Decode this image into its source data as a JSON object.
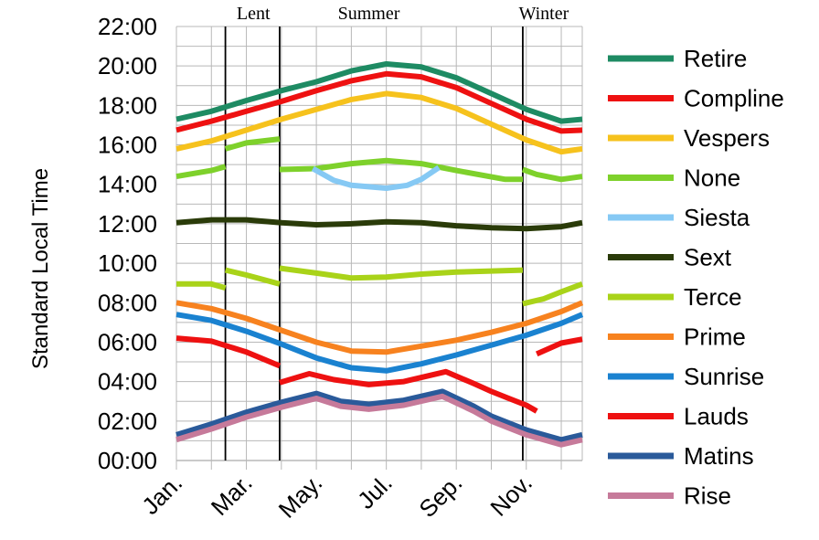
{
  "chart_data": {
    "type": "line",
    "ylabel": "Standard Local Time",
    "ylim": [
      0,
      22
    ],
    "xlim": [
      1,
      12.6
    ],
    "y_ticks": [
      "00:00",
      "02:00",
      "04:00",
      "06:00",
      "08:00",
      "10:00",
      "12:00",
      "14:00",
      "16:00",
      "18:00",
      "20:00",
      "22:00"
    ],
    "x_ticks": [
      {
        "label": "Jan.",
        "month": 1
      },
      {
        "label": "Mar.",
        "month": 3
      },
      {
        "label": "May.",
        "month": 5
      },
      {
        "label": "Jul.",
        "month": 7
      },
      {
        "label": "Sep.",
        "month": 9
      },
      {
        "label": "Nov.",
        "month": 11
      }
    ],
    "grid": true,
    "legend_position": "right",
    "season_markers": [
      {
        "label": "Lent",
        "month": 2.4
      },
      {
        "label": "",
        "month": 3.95
      },
      {
        "label": "Summer",
        "month": null
      },
      {
        "label": "Winter",
        "month": 10.9
      }
    ],
    "season_label_months": {
      "Lent": 3.2,
      "Summer": 6.5,
      "Winter": 11.5
    },
    "series": [
      {
        "name": "Retire",
        "color": "#1e8b63",
        "segments": [
          [
            [
              1,
              17.3
            ],
            [
              2,
              17.7
            ],
            [
              3,
              18.25
            ],
            [
              4,
              18.75
            ],
            [
              5,
              19.2
            ],
            [
              6,
              19.75
            ],
            [
              7,
              20.1
            ],
            [
              8,
              19.95
            ],
            [
              9,
              19.4
            ],
            [
              10,
              18.6
            ],
            [
              11,
              17.8
            ],
            [
              12,
              17.2
            ],
            [
              12.6,
              17.3
            ]
          ]
        ]
      },
      {
        "name": "Compline",
        "color": "#ee1111",
        "segments": [
          [
            [
              1,
              16.75
            ],
            [
              2,
              17.2
            ],
            [
              3,
              17.7
            ],
            [
              4,
              18.2
            ],
            [
              5,
              18.75
            ],
            [
              6,
              19.25
            ],
            [
              7,
              19.6
            ],
            [
              8,
              19.45
            ],
            [
              9,
              18.9
            ],
            [
              10,
              18.1
            ],
            [
              11,
              17.3
            ],
            [
              12,
              16.7
            ],
            [
              12.6,
              16.75
            ]
          ]
        ]
      },
      {
        "name": "Vespers",
        "color": "#f6c21d",
        "segments": [
          [
            [
              1,
              15.8
            ],
            [
              2,
              16.2
            ],
            [
              3,
              16.75
            ],
            [
              4,
              17.3
            ],
            [
              5,
              17.8
            ],
            [
              6,
              18.3
            ],
            [
              7,
              18.6
            ],
            [
              8,
              18.4
            ],
            [
              9,
              17.85
            ],
            [
              10,
              17.05
            ],
            [
              11,
              16.25
            ],
            [
              12,
              15.65
            ],
            [
              12.6,
              15.8
            ]
          ]
        ]
      },
      {
        "name": "None",
        "color": "#7ed12b",
        "segments": [
          [
            [
              1,
              14.4
            ],
            [
              2,
              14.7
            ],
            [
              2.4,
              14.9
            ]
          ],
          [
            [
              2.4,
              15.8
            ],
            [
              3,
              16.1
            ],
            [
              3.95,
              16.3
            ]
          ],
          [
            [
              3.95,
              14.75
            ],
            [
              5,
              14.8
            ],
            [
              6,
              15.05
            ],
            [
              7,
              15.2
            ],
            [
              8,
              15.05
            ],
            [
              9,
              14.7
            ],
            [
              10.4,
              14.25
            ],
            [
              10.9,
              14.25
            ]
          ],
          [
            [
              10.9,
              14.75
            ],
            [
              11.3,
              14.5
            ],
            [
              12,
              14.25
            ],
            [
              12.6,
              14.4
            ]
          ]
        ]
      },
      {
        "name": "Siesta",
        "color": "#86c9f4",
        "segments": [
          [
            [
              4.9,
              14.8
            ],
            [
              5.5,
              14.2
            ],
            [
              6,
              13.95
            ],
            [
              7,
              13.8
            ],
            [
              7.6,
              13.95
            ],
            [
              8,
              14.25
            ],
            [
              8.5,
              14.85
            ]
          ]
        ]
      },
      {
        "name": "Sext",
        "color": "#2a3b09",
        "segments": [
          [
            [
              1,
              12.05
            ],
            [
              2,
              12.2
            ],
            [
              3,
              12.2
            ],
            [
              4,
              12.05
            ],
            [
              5,
              11.95
            ],
            [
              6,
              12.0
            ],
            [
              7,
              12.1
            ],
            [
              8,
              12.05
            ],
            [
              9,
              11.9
            ],
            [
              10,
              11.8
            ],
            [
              11,
              11.75
            ],
            [
              12,
              11.85
            ],
            [
              12.6,
              12.05
            ]
          ]
        ]
      },
      {
        "name": "Terce",
        "color": "#a9d319",
        "segments": [
          [
            [
              1,
              8.95
            ],
            [
              2,
              8.95
            ],
            [
              2.4,
              8.75
            ]
          ],
          [
            [
              2.4,
              9.65
            ],
            [
              3,
              9.4
            ],
            [
              3.95,
              8.95
            ]
          ],
          [
            [
              3.95,
              9.75
            ],
            [
              5,
              9.5
            ],
            [
              6,
              9.25
            ],
            [
              7,
              9.3
            ],
            [
              8,
              9.45
            ],
            [
              9,
              9.55
            ],
            [
              10.9,
              9.65
            ]
          ],
          [
            [
              10.9,
              7.95
            ],
            [
              11.5,
              8.2
            ],
            [
              12,
              8.55
            ],
            [
              12.6,
              8.95
            ]
          ]
        ]
      },
      {
        "name": "Prime",
        "color": "#f7821f",
        "segments": [
          [
            [
              1,
              8.0
            ],
            [
              2,
              7.7
            ],
            [
              3,
              7.2
            ],
            [
              4,
              6.6
            ],
            [
              5,
              6.0
            ],
            [
              6,
              5.55
            ],
            [
              7,
              5.5
            ],
            [
              8,
              5.8
            ],
            [
              9,
              6.1
            ],
            [
              10,
              6.5
            ],
            [
              11,
              6.95
            ],
            [
              12,
              7.55
            ],
            [
              12.6,
              8.0
            ]
          ]
        ]
      },
      {
        "name": "Sunrise",
        "color": "#1a82d0",
        "segments": [
          [
            [
              1,
              7.4
            ],
            [
              2,
              7.1
            ],
            [
              3,
              6.55
            ],
            [
              4,
              5.9
            ],
            [
              5,
              5.2
            ],
            [
              6,
              4.7
            ],
            [
              7,
              4.55
            ],
            [
              8,
              4.9
            ],
            [
              9,
              5.35
            ],
            [
              10,
              5.85
            ],
            [
              11,
              6.35
            ],
            [
              12,
              6.95
            ],
            [
              12.6,
              7.4
            ]
          ]
        ]
      },
      {
        "name": "Lauds",
        "color": "#ee1111",
        "segments": [
          [
            [
              1,
              6.2
            ],
            [
              2,
              6.05
            ],
            [
              3,
              5.5
            ],
            [
              3.95,
              4.8
            ]
          ],
          [
            [
              3.95,
              3.95
            ],
            [
              4.8,
              4.4
            ],
            [
              5.5,
              4.1
            ],
            [
              6.5,
              3.85
            ],
            [
              7.5,
              4.0
            ],
            [
              8.7,
              4.5
            ],
            [
              9.5,
              3.9
            ],
            [
              10,
              3.5
            ],
            [
              10.5,
              3.15
            ],
            [
              11,
              2.8
            ],
            [
              11.3,
              2.5
            ]
          ],
          [
            [
              11.3,
              5.4
            ],
            [
              12,
              5.95
            ],
            [
              12.6,
              6.15
            ]
          ]
        ]
      },
      {
        "name": "Matins",
        "color": "#2a5a9a",
        "segments": [
          [
            [
              1,
              1.3
            ],
            [
              2,
              1.85
            ],
            [
              3,
              2.45
            ],
            [
              4,
              2.95
            ],
            [
              5,
              3.4
            ],
            [
              5.7,
              3.0
            ],
            [
              6.5,
              2.85
            ],
            [
              7.5,
              3.05
            ],
            [
              8.6,
              3.5
            ],
            [
              9.5,
              2.75
            ],
            [
              10,
              2.25
            ],
            [
              11,
              1.55
            ],
            [
              12,
              1.05
            ],
            [
              12.6,
              1.3
            ]
          ]
        ]
      },
      {
        "name": "Rise",
        "color": "#c67a9a",
        "segments": [
          [
            [
              1,
              1.05
            ],
            [
              2,
              1.6
            ],
            [
              3,
              2.2
            ],
            [
              4,
              2.7
            ],
            [
              5,
              3.15
            ],
            [
              5.7,
              2.75
            ],
            [
              6.5,
              2.6
            ],
            [
              7.5,
              2.8
            ],
            [
              8.6,
              3.25
            ],
            [
              9.5,
              2.5
            ],
            [
              10,
              2.0
            ],
            [
              11,
              1.3
            ],
            [
              12,
              0.8
            ],
            [
              12.6,
              1.05
            ]
          ]
        ]
      }
    ]
  }
}
